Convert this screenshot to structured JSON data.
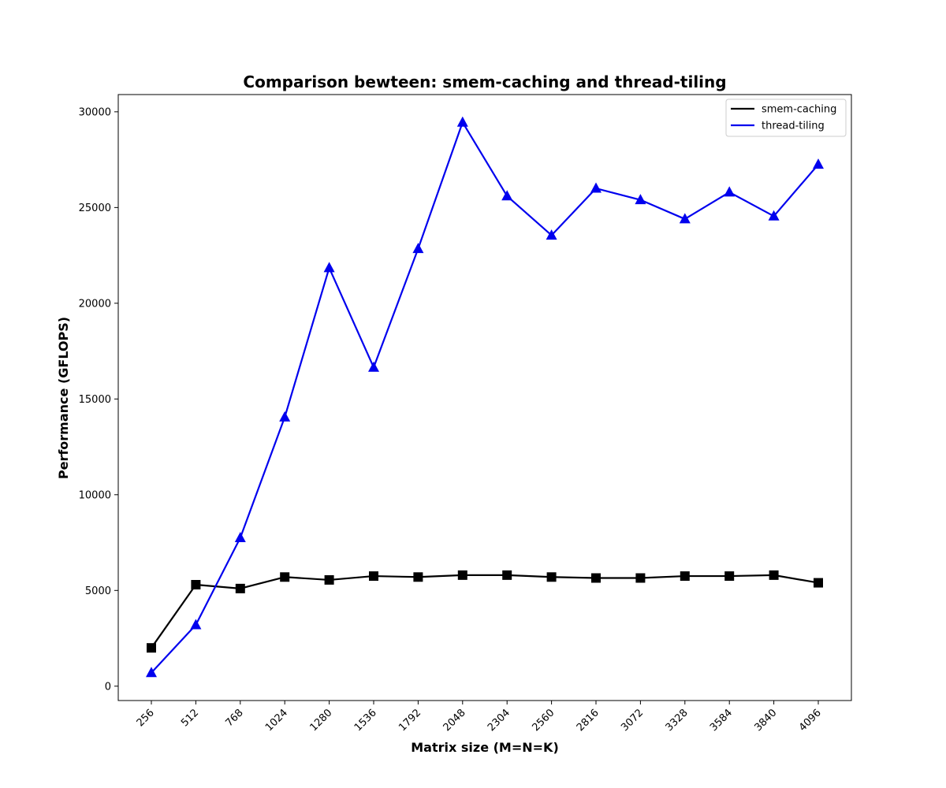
{
  "chart_data": {
    "type": "line",
    "title": "Comparison bewteen: smem-caching and thread-tiling",
    "xlabel": "Matrix size (M=N=K)",
    "ylabel": "Performance (GFLOPS)",
    "categories": [
      "256",
      "512",
      "768",
      "1024",
      "1280",
      "1536",
      "1792",
      "2048",
      "2304",
      "2560",
      "2816",
      "3072",
      "3328",
      "3584",
      "3840",
      "4096"
    ],
    "yticks": [
      0,
      5000,
      10000,
      15000,
      20000,
      25000,
      30000
    ],
    "ylim": [
      -750,
      30900
    ],
    "grid": false,
    "legend_position": "top-right",
    "series": [
      {
        "name": "smem-caching",
        "color": "#000000",
        "marker": "square",
        "values": [
          2000,
          5300,
          5100,
          5700,
          5550,
          5750,
          5700,
          5800,
          5800,
          5700,
          5650,
          5650,
          5750,
          5750,
          5800,
          5400
        ]
      },
      {
        "name": "thread-tiling",
        "color": "#0000ee",
        "marker": "triangle",
        "values": [
          700,
          3200,
          7750,
          14050,
          21850,
          16650,
          22850,
          29450,
          25600,
          23550,
          26000,
          25400,
          24400,
          25800,
          24550,
          27250
        ]
      }
    ]
  }
}
